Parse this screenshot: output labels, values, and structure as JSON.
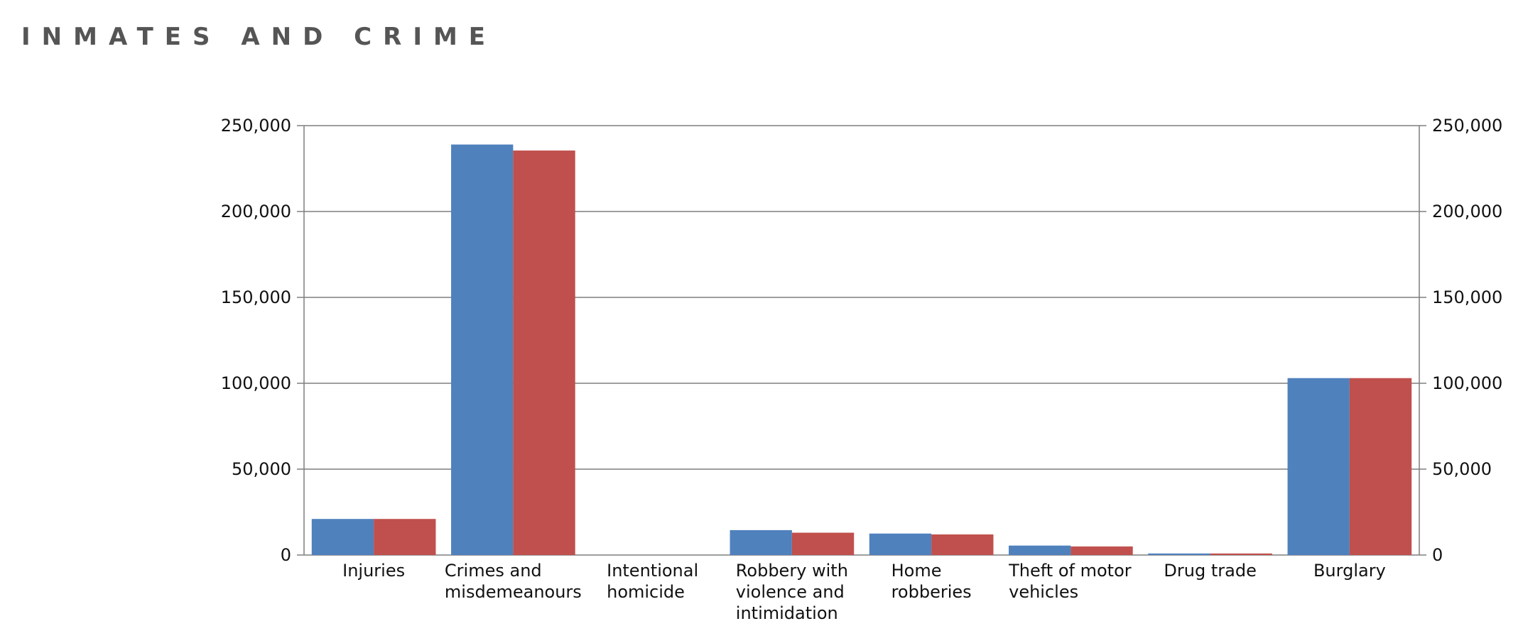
{
  "title": "INMATES AND CRIME",
  "chart_data": {
    "type": "bar",
    "title": "INMATES AND CRIME",
    "xlabel": "",
    "ylabel": "",
    "ylim": [
      0,
      250000
    ],
    "yticks": [
      "0",
      "50,000",
      "100,000",
      "150,000",
      "200,000",
      "250,000"
    ],
    "grid": true,
    "categories": [
      [
        "Injuries"
      ],
      [
        "Crimes and",
        "misdemeanours"
      ],
      [
        "Intentional",
        "homicide"
      ],
      [
        "Robbery with",
        "violence and",
        "intimidation"
      ],
      [
        "Home",
        "robberies"
      ],
      [
        "Theft of motor",
        "vehicles"
      ],
      [
        "Drug trade"
      ],
      [
        "Burglary"
      ]
    ],
    "series": [
      {
        "color": "#4f81bd",
        "values": [
          21000,
          239000,
          0,
          14500,
          12500,
          5500,
          900,
          103000
        ]
      },
      {
        "color": "#c0504d",
        "values": [
          21000,
          235500,
          0,
          13000,
          12000,
          5000,
          900,
          103000
        ]
      }
    ]
  }
}
